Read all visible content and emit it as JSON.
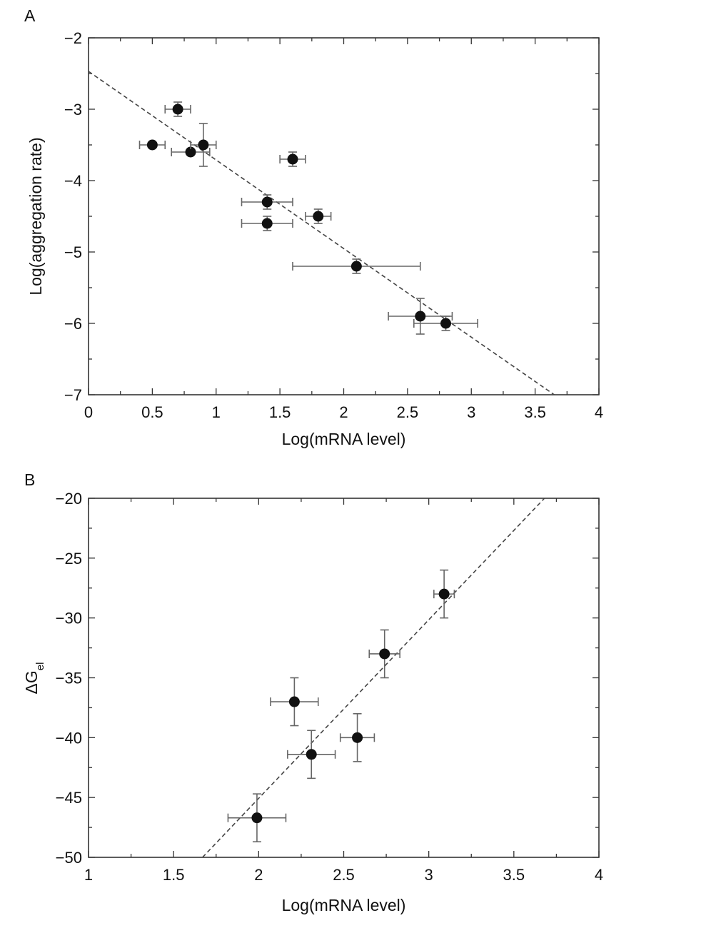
{
  "chart_data": [
    {
      "panel": "A",
      "type": "scatter",
      "xlabel": "Log(mRNA level)",
      "ylabel": "Log(aggregation rate)",
      "xlim": [
        0,
        4
      ],
      "ylim": [
        -7,
        -2
      ],
      "xticks": [
        0,
        0.5,
        1,
        1.5,
        2,
        2.5,
        3,
        3.5,
        4
      ],
      "xtick_labels": [
        "0",
        "0.5",
        "1",
        "1.5",
        "2",
        "2.5",
        "3",
        "3.5",
        "4"
      ],
      "yticks": [
        -7,
        -6,
        -5,
        -4,
        -3,
        -2
      ],
      "ytick_labels": [
        "−7",
        "−6",
        "−5",
        "−4",
        "−3",
        "−2"
      ],
      "points": [
        {
          "x": 0.5,
          "y": -3.5,
          "xerr": 0.1,
          "yerr": 0
        },
        {
          "x": 0.7,
          "y": -3.0,
          "xerr": 0.1,
          "yerr": 0.1
        },
        {
          "x": 0.8,
          "y": -3.6,
          "xerr": 0.15,
          "yerr": 0
        },
        {
          "x": 0.9,
          "y": -3.5,
          "xerr": 0.1,
          "yerr": 0.3
        },
        {
          "x": 1.4,
          "y": -4.3,
          "xerr": 0.2,
          "yerr": 0.1
        },
        {
          "x": 1.4,
          "y": -4.6,
          "xerr": 0.2,
          "yerr": 0.1
        },
        {
          "x": 1.6,
          "y": -3.7,
          "xerr": 0.1,
          "yerr": 0.1
        },
        {
          "x": 1.8,
          "y": -4.5,
          "xerr": 0.1,
          "yerr": 0.1
        },
        {
          "x": 2.1,
          "y": -5.2,
          "xerr": 0.5,
          "yerr": 0.1
        },
        {
          "x": 2.6,
          "y": -5.9,
          "xerr": 0.25,
          "yerr": 0.25
        },
        {
          "x": 2.8,
          "y": -6.0,
          "xerr": 0.25,
          "yerr": 0.1
        }
      ],
      "fit_line": {
        "x": [
          0,
          3.65
        ],
        "y": [
          -2.47,
          -7.0
        ],
        "style": "dashed"
      }
    },
    {
      "panel": "B",
      "type": "scatter",
      "xlabel": "Log(mRNA level)",
      "ylabel": "ΔG",
      "ylabel_subscript": "el",
      "xlim": [
        1,
        4
      ],
      "ylim": [
        -50,
        -20
      ],
      "xticks": [
        1,
        1.5,
        2,
        2.5,
        3,
        3.5,
        4
      ],
      "xtick_labels": [
        "1",
        "1.5",
        "2",
        "2.5",
        "3",
        "3.5",
        "4"
      ],
      "yticks": [
        -50,
        -45,
        -40,
        -35,
        -30,
        -25,
        -20
      ],
      "ytick_labels": [
        "−50",
        "−45",
        "−40",
        "−35",
        "−30",
        "−25",
        "−20"
      ],
      "points": [
        {
          "x": 1.99,
          "y": -46.7,
          "xerr": 0.17,
          "yerr": 2.0
        },
        {
          "x": 2.21,
          "y": -37.0,
          "xerr": 0.14,
          "yerr": 2.0
        },
        {
          "x": 2.31,
          "y": -41.4,
          "xerr": 0.14,
          "yerr": 2.0
        },
        {
          "x": 2.58,
          "y": -40.0,
          "xerr": 0.1,
          "yerr": 2.0
        },
        {
          "x": 2.74,
          "y": -33.0,
          "xerr": 0.09,
          "yerr": 2.0
        },
        {
          "x": 3.09,
          "y": -28.0,
          "xerr": 0.06,
          "yerr": 2.0
        }
      ],
      "fit_line": {
        "x": [
          1.67,
          3.68
        ],
        "y": [
          -50.0,
          -20.0
        ],
        "style": "dashed"
      }
    }
  ]
}
